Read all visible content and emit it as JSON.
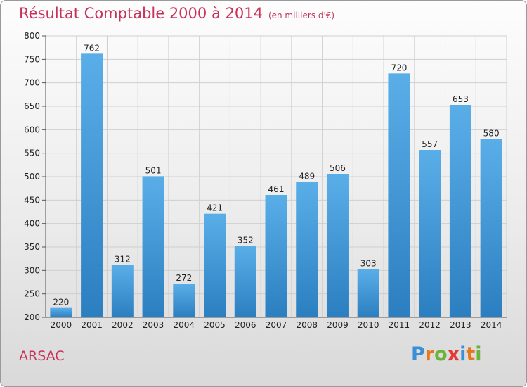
{
  "header": {
    "title": "Résultat Comptable 2000 à 2014",
    "unit": "(en milliers d'€)"
  },
  "footer": {
    "commune": "ARSAC",
    "logo_letters": [
      "P",
      "r",
      "o",
      "x",
      "i",
      "t",
      "i"
    ],
    "logo_colors": [
      "#3a8fd6",
      "#e8761a",
      "#6ab33c",
      "#e53935",
      "#3a8fd6",
      "#e8761a",
      "#6ab33c"
    ]
  },
  "chart_data": {
    "type": "bar",
    "categories": [
      "2000",
      "2001",
      "2002",
      "2003",
      "2004",
      "2005",
      "2006",
      "2007",
      "2008",
      "2009",
      "2010",
      "2011",
      "2012",
      "2013",
      "2014"
    ],
    "values": [
      220,
      762,
      312,
      501,
      272,
      421,
      352,
      461,
      489,
      506,
      303,
      720,
      557,
      653,
      580
    ],
    "title": "Résultat Comptable 2000 à 2014",
    "xlabel": "",
    "ylabel": "",
    "ylim": [
      200,
      800
    ],
    "yticks": [
      200,
      250,
      300,
      350,
      400,
      450,
      500,
      550,
      600,
      650,
      700,
      750,
      800
    ],
    "grid": true,
    "bar_color_top": "#5aaee8",
    "bar_color_bottom": "#2b7fc0"
  }
}
